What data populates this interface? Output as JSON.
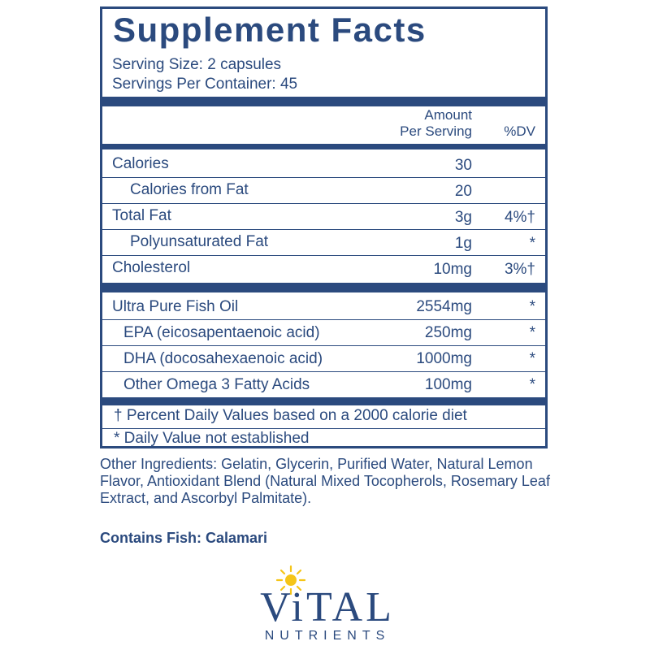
{
  "panel": {
    "title": "Supplement Facts",
    "serving_size": "Serving Size: 2 capsules",
    "servings_per_container": "Servings Per Container: 45",
    "header": {
      "amount_line1": "Amount",
      "amount_line2": "Per Serving",
      "dv": "%DV"
    },
    "nutrients": [
      {
        "name": "Calories",
        "amount": "30",
        "dv": ""
      },
      {
        "name": "Calories from Fat",
        "amount": "20",
        "dv": ""
      },
      {
        "name": "Total Fat",
        "amount": "3g",
        "dv": "4%†"
      },
      {
        "name": "Polyunsaturated Fat",
        "amount": "1g",
        "dv": "*"
      },
      {
        "name": "Cholesterol",
        "amount": "10mg",
        "dv": "3%†"
      }
    ],
    "ingredients": [
      {
        "name": "Ultra Pure Fish Oil",
        "amount": "2554mg",
        "dv": "*"
      },
      {
        "name": "EPA  (eicosapentaenoic acid)",
        "amount": "250mg",
        "dv": "*"
      },
      {
        "name": "DHA (docosahexaenoic acid)",
        "amount": "1000mg",
        "dv": "*"
      },
      {
        "name": "Other Omega 3 Fatty Acids",
        "amount": "100mg",
        "dv": "*"
      }
    ],
    "footnote_1": "† Percent Daily Values based on a 2000 calorie diet",
    "footnote_2": "* Daily Value not established"
  },
  "other_ingredients": "Other Ingredients: Gelatin, Glycerin, Purified Water, Natural Lemon Flavor, Antioxidant Blend (Natural Mixed Tocopherols, Rosemary Leaf Extract,  and Ascorbyl Palmitate).",
  "contains": "Contains Fish: Calamari",
  "brand": {
    "name": "ViTAL",
    "sub": "NUTRIENTS",
    "sun_color": "#f5c518",
    "text_color": "#2b4a7e"
  }
}
